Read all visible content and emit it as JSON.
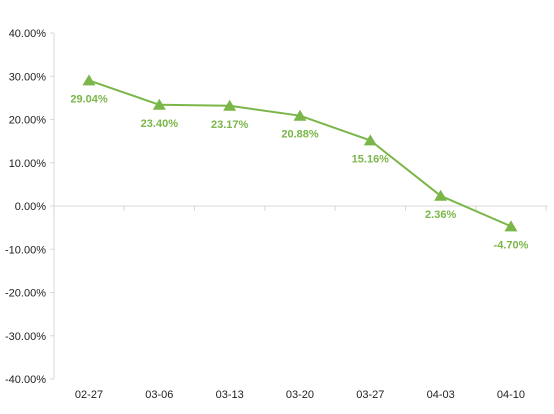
{
  "chart_data": {
    "type": "line",
    "title": "",
    "xlabel": "",
    "ylabel": "",
    "categories": [
      "02-27",
      "03-06",
      "03-13",
      "03-20",
      "03-27",
      "04-03",
      "04-10"
    ],
    "series": [
      {
        "values": [
          29.04,
          23.4,
          23.17,
          20.88,
          15.16,
          2.36,
          -4.7
        ],
        "labels": [
          "29.04%",
          "23.40%",
          "23.17%",
          "20.88%",
          "15.16%",
          "2.36%",
          "-4.70%"
        ],
        "color": "#7ab648",
        "marker": "triangle"
      }
    ],
    "ylim": [
      -40,
      40
    ],
    "yticks": [
      40,
      30,
      20,
      10,
      0,
      -10,
      -20,
      -30,
      -40
    ],
    "ytick_labels": [
      "40.00%",
      "30.00%",
      "20.00%",
      "10.00%",
      "0.00%",
      "-10.00%",
      "-20.00%",
      "-30.00%",
      "-40.00%"
    ],
    "grid": false,
    "legend": "none",
    "axis_color": "#d9d9d9"
  }
}
